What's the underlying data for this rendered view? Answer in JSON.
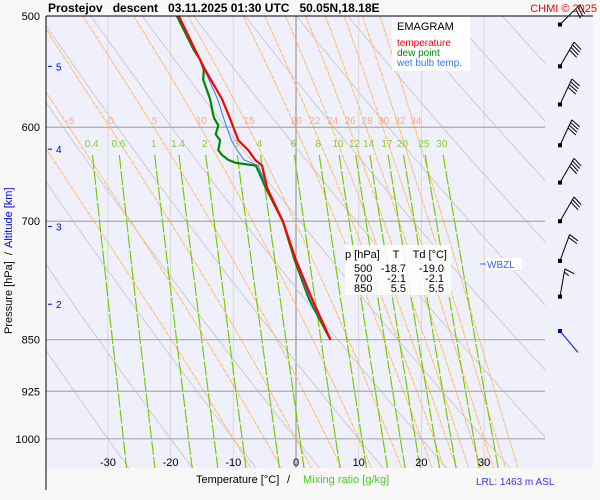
{
  "header": {
    "title": "Prostejov   descent   03.11.2025 01:30 UTC   50.05N,18.18E",
    "copyright": "CHMI © 2025"
  },
  "colors": {
    "temperature": "#ff0000",
    "dew_point": "#008800",
    "wet_bulb": "#3377ff",
    "mixing_ratio": "#77cc00",
    "moist_adiabat": "#ffbb66",
    "dry_adiabat": "#cccccc",
    "background": "#f0f0fc",
    "altitude": "#0000dd"
  },
  "legend": {
    "title": "EMAGRAM",
    "temperature": "temperature",
    "dew_point": "dew point",
    "wet_bulb": "wet bulb temp."
  },
  "table": {
    "headers": [
      "p [hPa]",
      "T",
      "Td [°C]"
    ],
    "rows": [
      [
        "500",
        "-18.7",
        "-19.0"
      ],
      [
        "700",
        "-2.1",
        "-2.1"
      ],
      [
        "850",
        "5.5",
        "5.5"
      ]
    ]
  },
  "wbzl_label": "WBZL",
  "lrl_label": "LRL: 1463 m ASL",
  "axis": {
    "xlabel_temp": "Temperature [°C]",
    "xlabel_sep": "/",
    "xlabel_mix": "Mixing ratio [g/kg]",
    "ylabel_pressure": "Pressure [hPa]  /",
    "ylabel_altitude": "Altitude [km]"
  },
  "chart_data": {
    "type": "line",
    "title": "Prostejov descent 03.11.2025 01:30 UTC 50.05N,18.18E",
    "xlim": [
      -40,
      39.5
    ],
    "ylim_hpa": [
      500,
      1050
    ],
    "x_ticks": [
      -30,
      -20,
      -10,
      0,
      10,
      20,
      30
    ],
    "pressure_ticks": [
      500,
      600,
      700,
      850,
      925,
      1000
    ],
    "altitude_ticks_km": [
      {
        "km": "5",
        "p": 543
      },
      {
        "km": "4",
        "p": 622
      },
      {
        "km": "3",
        "p": 706
      },
      {
        "km": "2",
        "p": 802
      }
    ],
    "isotherms": [
      -40,
      -30,
      -20,
      -10,
      0,
      10,
      20,
      30
    ],
    "dry_adiabats_theta": [
      -30,
      -20,
      -10,
      0,
      10,
      20,
      30,
      40,
      50,
      60,
      70,
      80,
      90,
      100,
      110
    ],
    "moist_adiabat_labels": [
      "-5",
      "0",
      "5",
      "10",
      "15",
      "20",
      "22",
      "24",
      "26",
      "28",
      "30",
      "32",
      "34"
    ],
    "moist_adiabats": [
      -10,
      -5,
      0,
      5,
      10,
      15,
      20,
      22,
      24,
      26,
      28,
      30,
      32,
      34
    ],
    "mixing_ratio_labels": [
      "0.4",
      "0.6",
      "1",
      "1.4",
      "2",
      "3",
      "4",
      "6",
      "8",
      "10",
      "12",
      "14",
      "17",
      "20",
      "25",
      "30"
    ],
    "series": [
      {
        "name": "temperature",
        "points": [
          [
            500,
            -18.7
          ],
          [
            511.6,
            -17.6
          ],
          [
            528.6,
            -16.1
          ],
          [
            546,
            -14.5
          ],
          [
            573,
            -11.8
          ],
          [
            592,
            -10.5
          ],
          [
            613,
            -9.2
          ],
          [
            623,
            -7.6
          ],
          [
            633,
            -6.5
          ],
          [
            639,
            -5.4
          ],
          [
            663,
            -4.6
          ],
          [
            700,
            -2.1
          ],
          [
            746,
            0.0
          ],
          [
            796,
            2.6
          ],
          [
            850,
            5.5
          ]
        ]
      },
      {
        "name": "dew point",
        "points": [
          [
            500,
            -19.0
          ],
          [
            528.6,
            -16.3
          ],
          [
            537,
            -15.3
          ],
          [
            546,
            -14.7
          ],
          [
            555,
            -14.8
          ],
          [
            573,
            -13.7
          ],
          [
            588,
            -13.2
          ],
          [
            592,
            -13.0
          ],
          [
            598,
            -12.4
          ],
          [
            607,
            -12.8
          ],
          [
            613,
            -12.1
          ],
          [
            623,
            -12.4
          ],
          [
            628,
            -11.8
          ],
          [
            633,
            -10.8
          ],
          [
            636,
            -9.6
          ],
          [
            639,
            -6.4
          ],
          [
            663,
            -4.8
          ],
          [
            700,
            -2.1
          ],
          [
            746,
            -0.2
          ],
          [
            796,
            2.1
          ],
          [
            850,
            5.5
          ]
        ]
      },
      {
        "name": "wet bulb temp.",
        "points": [
          [
            500,
            -18.8
          ],
          [
            528.6,
            -16.2
          ],
          [
            546,
            -14.6
          ],
          [
            573,
            -12.5
          ],
          [
            592,
            -11.5
          ],
          [
            613,
            -10.3
          ],
          [
            623,
            -9.4
          ],
          [
            633,
            -8.3
          ],
          [
            639,
            -6.0
          ],
          [
            663,
            -4.7
          ],
          [
            700,
            -2.1
          ],
          [
            746,
            -0.1
          ],
          [
            796,
            2.3
          ],
          [
            850,
            5.5
          ]
        ]
      }
    ],
    "wbzl_p": 746,
    "wind_barbs": [
      {
        "p": 507,
        "dir": 225,
        "kt": 30
      },
      {
        "p": 543,
        "dir": 210,
        "kt": 40
      },
      {
        "p": 578,
        "dir": 205,
        "kt": 40
      },
      {
        "p": 618,
        "dir": 205,
        "kt": 40
      },
      {
        "p": 657,
        "dir": 210,
        "kt": 40
      },
      {
        "p": 700,
        "dir": 210,
        "kt": 30
      },
      {
        "p": 747,
        "dir": 200,
        "kt": 20
      },
      {
        "p": 792,
        "dir": 190,
        "kt": 15
      },
      {
        "p": 838,
        "dir": 320,
        "kt": 0
      }
    ]
  }
}
